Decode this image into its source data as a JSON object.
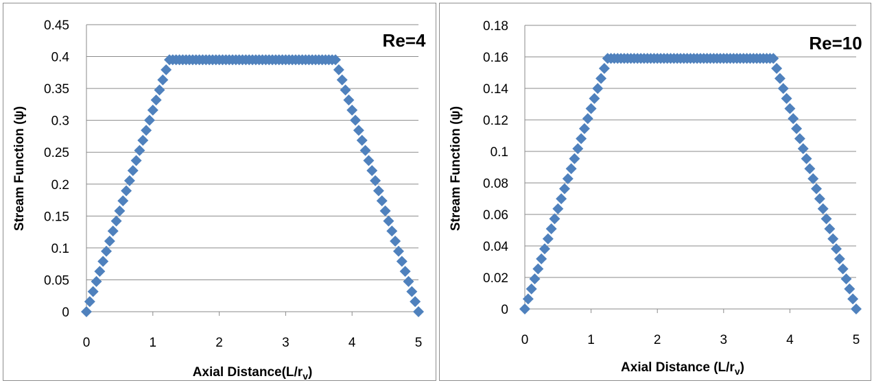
{
  "chart_data": [
    {
      "type": "scatter",
      "annotation": "Re=4",
      "xlabel": "Axial Distance(L/r",
      "xlabel_subscript": "v",
      "xlabel_suffix": ")",
      "ylabel": "Stream Function (ψ)",
      "xlim": [
        0,
        5
      ],
      "ylim": [
        0,
        0.45
      ],
      "xticks": [
        "0",
        "1",
        "2",
        "3",
        "4",
        "5"
      ],
      "yticks": [
        "0",
        "0.05",
        "0.1",
        "0.15",
        "0.2",
        "0.25",
        "0.3",
        "0.35",
        "0.4",
        "0.45"
      ],
      "grid": true,
      "marker": "diamond",
      "color": "#4f81bd",
      "series": [
        {
          "x": [
            0,
            0.05,
            0.1,
            0.15,
            0.2,
            0.25,
            0.3,
            0.35,
            0.4,
            0.45,
            0.5,
            0.55,
            0.6,
            0.65,
            0.7,
            0.75,
            0.8,
            0.85,
            0.9,
            0.95,
            1.0,
            1.05,
            1.1,
            1.15,
            1.2,
            1.25,
            1.3,
            1.35,
            1.4,
            1.45,
            1.5,
            1.55,
            1.6,
            1.65,
            1.7,
            1.75,
            1.8,
            1.85,
            1.9,
            1.95,
            2.0,
            2.05,
            2.1,
            2.15,
            2.2,
            2.25,
            2.3,
            2.35,
            2.4,
            2.45,
            2.5,
            2.55,
            2.6,
            2.65,
            2.7,
            2.75,
            2.8,
            2.85,
            2.9,
            2.95,
            3.0,
            3.05,
            3.1,
            3.15,
            3.2,
            3.25,
            3.3,
            3.35,
            3.4,
            3.45,
            3.5,
            3.55,
            3.6,
            3.65,
            3.7,
            3.75,
            3.8,
            3.85,
            3.9,
            3.95,
            4.0,
            4.05,
            4.1,
            4.15,
            4.2,
            4.25,
            4.3,
            4.35,
            4.4,
            4.45,
            4.5,
            4.55,
            4.6,
            4.65,
            4.7,
            4.75,
            4.8,
            4.85,
            4.9,
            4.95,
            5.0
          ],
          "y": [
            0,
            0.0158,
            0.0316,
            0.0474,
            0.0632,
            0.079,
            0.0948,
            0.1106,
            0.1264,
            0.1422,
            0.158,
            0.1738,
            0.1896,
            0.2054,
            0.2212,
            0.237,
            0.2528,
            0.2686,
            0.2844,
            0.3002,
            0.316,
            0.3318,
            0.3476,
            0.3634,
            0.3792,
            0.395,
            0.395,
            0.395,
            0.395,
            0.395,
            0.395,
            0.395,
            0.395,
            0.395,
            0.395,
            0.395,
            0.395,
            0.395,
            0.395,
            0.395,
            0.395,
            0.395,
            0.395,
            0.395,
            0.395,
            0.395,
            0.395,
            0.395,
            0.395,
            0.395,
            0.395,
            0.395,
            0.395,
            0.395,
            0.395,
            0.395,
            0.395,
            0.395,
            0.395,
            0.395,
            0.395,
            0.395,
            0.395,
            0.395,
            0.395,
            0.395,
            0.395,
            0.395,
            0.395,
            0.395,
            0.395,
            0.395,
            0.395,
            0.395,
            0.395,
            0.395,
            0.3792,
            0.3634,
            0.3476,
            0.3318,
            0.316,
            0.3002,
            0.2844,
            0.2686,
            0.2528,
            0.237,
            0.2212,
            0.2054,
            0.1896,
            0.1738,
            0.158,
            0.1422,
            0.1264,
            0.1106,
            0.0948,
            0.079,
            0.0632,
            0.0474,
            0.0316,
            0.0158,
            0
          ]
        }
      ]
    },
    {
      "type": "scatter",
      "annotation": "Re=10",
      "xlabel": "Axial Distance  (L/r",
      "xlabel_subscript": "v",
      "xlabel_suffix": ")",
      "ylabel": "Stream Function (ψ)",
      "xlim": [
        0,
        5
      ],
      "ylim": [
        0,
        0.18
      ],
      "xticks": [
        "0",
        "1",
        "2",
        "3",
        "4",
        "5"
      ],
      "yticks": [
        "0",
        "0.02",
        "0.04",
        "0.06",
        "0.08",
        "0.1",
        "0.12",
        "0.14",
        "0.16",
        "0.18"
      ],
      "grid": true,
      "marker": "diamond",
      "color": "#4f81bd",
      "series": [
        {
          "x": [
            0,
            0.05,
            0.1,
            0.15,
            0.2,
            0.25,
            0.3,
            0.35,
            0.4,
            0.45,
            0.5,
            0.55,
            0.6,
            0.65,
            0.7,
            0.75,
            0.8,
            0.85,
            0.9,
            0.95,
            1.0,
            1.05,
            1.1,
            1.15,
            1.2,
            1.25,
            1.3,
            1.35,
            1.4,
            1.45,
            1.5,
            1.55,
            1.6,
            1.65,
            1.7,
            1.75,
            1.8,
            1.85,
            1.9,
            1.95,
            2.0,
            2.05,
            2.1,
            2.15,
            2.2,
            2.25,
            2.3,
            2.35,
            2.4,
            2.45,
            2.5,
            2.55,
            2.6,
            2.65,
            2.7,
            2.75,
            2.8,
            2.85,
            2.9,
            2.95,
            3.0,
            3.05,
            3.1,
            3.15,
            3.2,
            3.25,
            3.3,
            3.35,
            3.4,
            3.45,
            3.5,
            3.55,
            3.6,
            3.65,
            3.7,
            3.75,
            3.8,
            3.85,
            3.9,
            3.95,
            4.0,
            4.05,
            4.1,
            4.15,
            4.2,
            4.25,
            4.3,
            4.35,
            4.4,
            4.45,
            4.5,
            4.55,
            4.6,
            4.65,
            4.7,
            4.75,
            4.8,
            4.85,
            4.9,
            4.95,
            5.0
          ],
          "y": [
            0,
            0.00636,
            0.01272,
            0.01908,
            0.02544,
            0.0318,
            0.03816,
            0.04452,
            0.05088,
            0.05724,
            0.0636,
            0.06996,
            0.07632,
            0.08268,
            0.08904,
            0.0954,
            0.10176,
            0.10812,
            0.11448,
            0.12084,
            0.1272,
            0.13356,
            0.13992,
            0.14628,
            0.15264,
            0.159,
            0.159,
            0.159,
            0.159,
            0.159,
            0.159,
            0.159,
            0.159,
            0.159,
            0.159,
            0.159,
            0.159,
            0.159,
            0.159,
            0.159,
            0.159,
            0.159,
            0.159,
            0.159,
            0.159,
            0.159,
            0.159,
            0.159,
            0.159,
            0.159,
            0.159,
            0.159,
            0.159,
            0.159,
            0.159,
            0.159,
            0.159,
            0.159,
            0.159,
            0.159,
            0.159,
            0.159,
            0.159,
            0.159,
            0.159,
            0.159,
            0.159,
            0.159,
            0.159,
            0.159,
            0.159,
            0.159,
            0.159,
            0.159,
            0.159,
            0.159,
            0.15264,
            0.14628,
            0.13992,
            0.13356,
            0.1272,
            0.12084,
            0.11448,
            0.10812,
            0.10176,
            0.0954,
            0.08904,
            0.08268,
            0.07632,
            0.06996,
            0.0636,
            0.05724,
            0.05088,
            0.04452,
            0.03816,
            0.0318,
            0.02544,
            0.01908,
            0.01272,
            0.00636,
            0
          ]
        }
      ]
    }
  ]
}
